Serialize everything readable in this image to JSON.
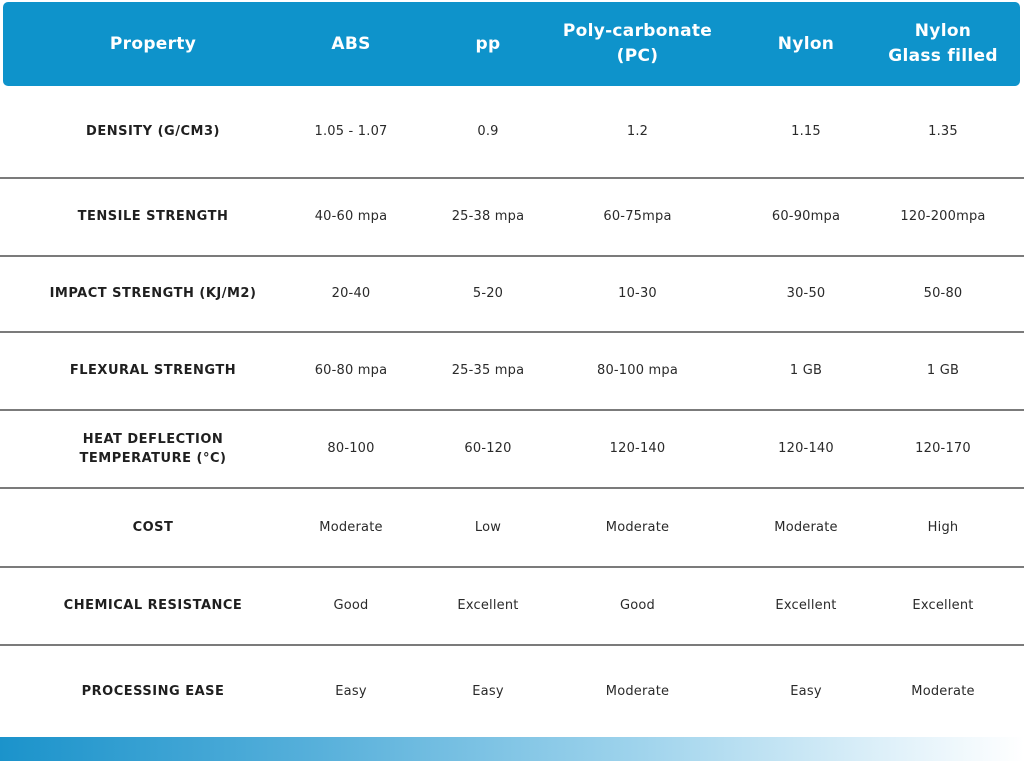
{
  "table": {
    "columns": [
      "Property",
      "ABS",
      "pp",
      "Poly-carbonate\n(PC)",
      "Nylon",
      "Nylon\nGlass filled"
    ],
    "rows": [
      {
        "property": "DENSITY (G/CM3)",
        "values": [
          "1.05 - 1.07",
          "0.9",
          "1.2",
          "1.15",
          "1.35"
        ]
      },
      {
        "property": "TENSILE STRENGTH",
        "values": [
          "40-60 mpa",
          "25-38 mpa",
          "60-75mpa",
          "60-90mpa",
          "120-200mpa"
        ]
      },
      {
        "property": "IMPACT STRENGTH (KJ/M2)",
        "values": [
          "20-40",
          "5-20",
          "10-30",
          "30-50",
          "50-80"
        ]
      },
      {
        "property": "FLEXURAL STRENGTH",
        "values": [
          "60-80 mpa",
          "25-35 mpa",
          "80-100 mpa",
          "1 GB",
          "1 GB"
        ]
      },
      {
        "property": "HEAT DEFLECTION\nTEMPERATURE (°C)",
        "values": [
          "80-100",
          "60-120",
          "120-140",
          "120-140",
          "120-170"
        ]
      },
      {
        "property": "COST",
        "values": [
          "Moderate",
          "Low",
          "Moderate",
          "Moderate",
          "High"
        ]
      },
      {
        "property": "CHEMICAL RESISTANCE",
        "values": [
          "Good",
          "Excellent",
          "Good",
          "Excellent",
          "Excellent"
        ]
      },
      {
        "property": "PROCESSING EASE",
        "values": [
          "Easy",
          "Easy",
          "Moderate",
          "Easy",
          "Moderate"
        ]
      }
    ]
  },
  "colors": {
    "header_bg": "#0e93cb",
    "header_text": "#ffffff",
    "separator": "#7b7b7b",
    "footer_gradient_start": "#1b93cb",
    "footer_gradient_end": "#ffffff"
  }
}
